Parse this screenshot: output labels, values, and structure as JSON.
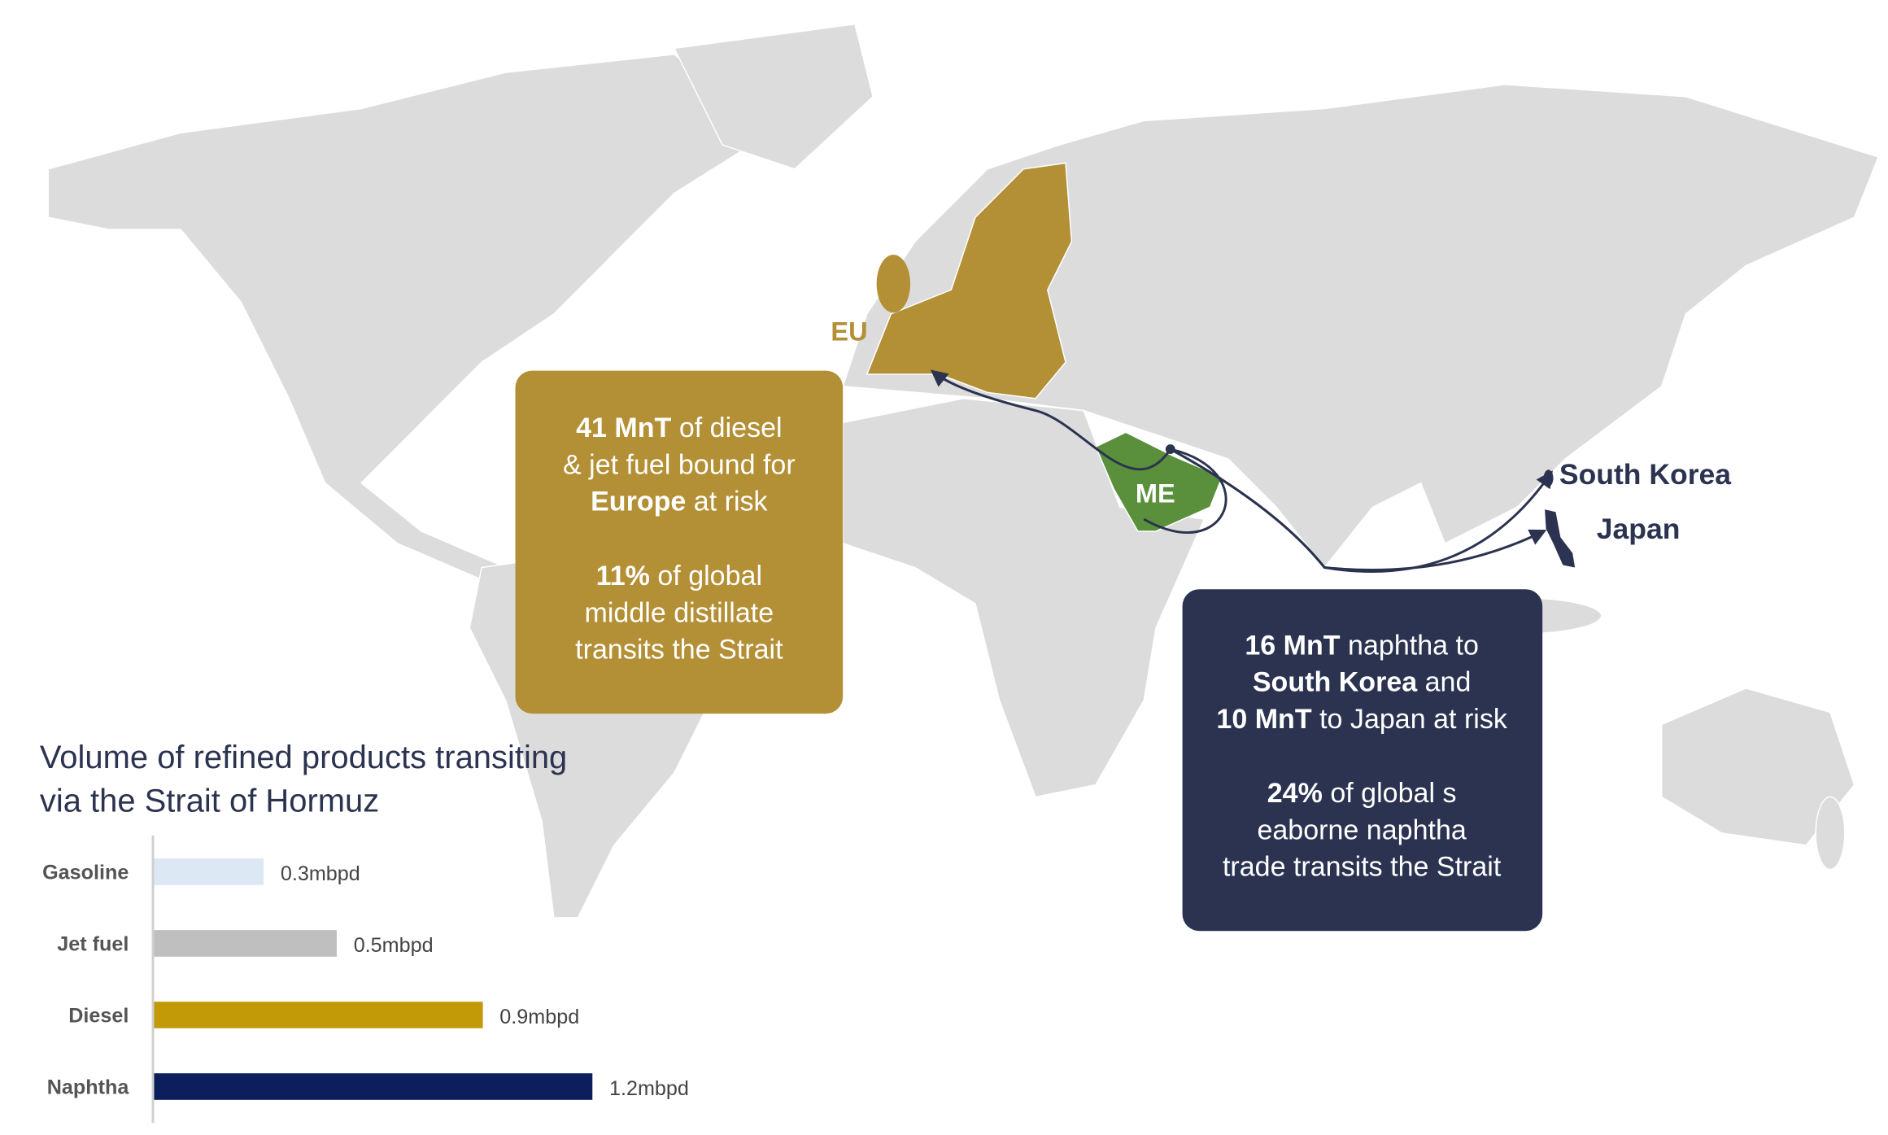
{
  "map_labels": {
    "eu": "EU",
    "me": "ME",
    "south_korea": "South Korea",
    "japan": "Japan"
  },
  "europe_box": {
    "paragraphs": [
      [
        [
          {
            "text": "41 MnT",
            "bold": true
          },
          {
            "text": " of diesel",
            "bold": false
          }
        ],
        [
          {
            "text": "& jet fuel bound for",
            "bold": false
          }
        ],
        [
          {
            "text": "Europe",
            "bold": true
          },
          {
            "text": " at risk",
            "bold": false
          }
        ]
      ],
      [
        [
          {
            "text": "11%",
            "bold": true
          },
          {
            "text": " of global",
            "bold": false
          }
        ],
        [
          {
            "text": "middle distillate",
            "bold": false
          }
        ],
        [
          {
            "text": "transits the Strait",
            "bold": false
          }
        ]
      ]
    ]
  },
  "asia_box": {
    "paragraphs": [
      [
        [
          {
            "text": "16 MnT",
            "bold": true
          },
          {
            "text": " naphtha to",
            "bold": false
          }
        ],
        [
          {
            "text": "South Korea",
            "bold": true
          },
          {
            "text": " and",
            "bold": false
          }
        ],
        [
          {
            "text": "10 MnT",
            "bold": true
          },
          {
            "text": " to Japan at risk",
            "bold": false
          }
        ]
      ],
      [
        [
          {
            "text": "24%",
            "bold": true
          },
          {
            "text": " of global s",
            "bold": false
          }
        ],
        [
          {
            "text": "eaborne naphtha",
            "bold": false
          }
        ],
        [
          {
            "text": "trade transits the Strait",
            "bold": false
          }
        ]
      ]
    ]
  },
  "chart_data": {
    "type": "bar",
    "orientation": "horizontal",
    "title": [
      "Volume of refined products transiting",
      "via the Strait of Hormuz"
    ],
    "categories": [
      "Gasoline",
      "Jet fuel",
      "Diesel",
      "Naphtha"
    ],
    "values": [
      0.3,
      0.5,
      0.9,
      1.2
    ],
    "value_labels": [
      "0.3mbpd",
      "0.5mbpd",
      "0.9mbpd",
      "1.2mbpd"
    ],
    "colors": [
      "#dce8f4",
      "#bfbfbf",
      "#c29a08",
      "#0c1f5c"
    ],
    "xlim": [
      0,
      1.2
    ]
  }
}
